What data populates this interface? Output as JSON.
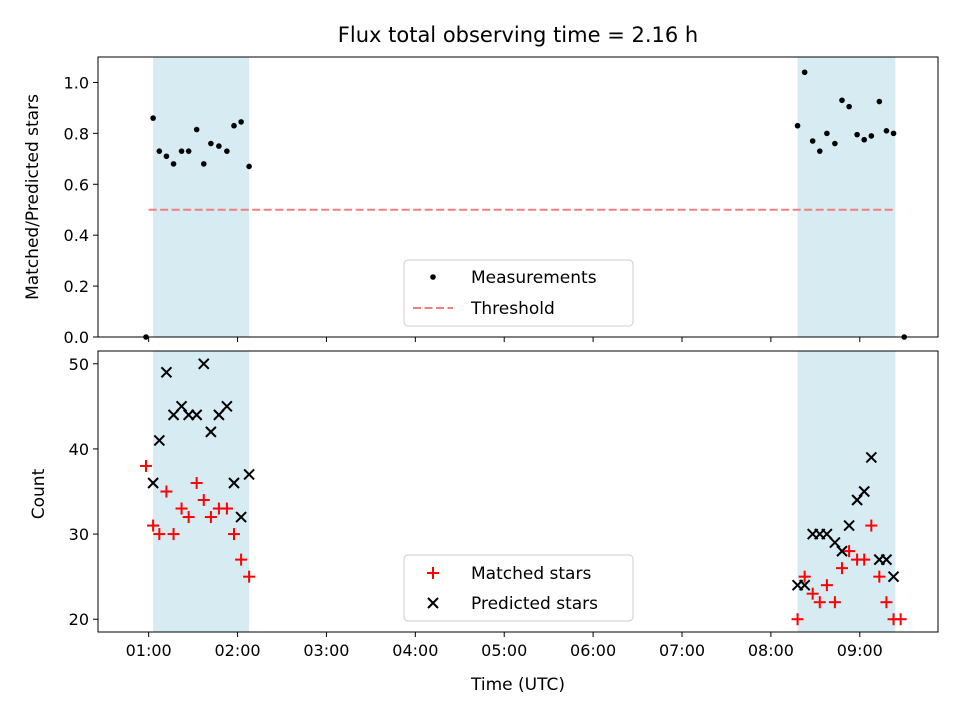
{
  "chart_data": [
    {
      "type": "scatter",
      "title": "Flux total observing time = 2.16 h",
      "xlabel": "",
      "ylabel": "Matched/Predicted stars",
      "ylim": [
        0,
        1.1
      ],
      "yticks": [
        0.0,
        0.2,
        0.4,
        0.6,
        0.8,
        1.0
      ],
      "ytick_labels": [
        "0.0",
        "0.2",
        "0.4",
        "0.6",
        "0.8",
        "1.0"
      ],
      "grid": false,
      "legend_position": "bottom-center",
      "shaded_intervals_hours": [
        [
          1.05,
          2.13
        ],
        [
          8.3,
          9.4
        ]
      ],
      "shade_color": "#add8e6",
      "series": [
        {
          "name": "Measurements",
          "marker": "dot",
          "color": "#000000",
          "x": [
            0.97,
            1.05,
            1.12,
            1.2,
            1.28,
            1.37,
            1.45,
            1.54,
            1.62,
            1.7,
            1.79,
            1.88,
            1.96,
            2.04,
            2.13,
            8.3,
            8.38,
            8.47,
            8.55,
            8.63,
            8.72,
            8.8,
            8.88,
            8.97,
            9.05,
            9.13,
            9.22,
            9.3,
            9.38,
            9.5
          ],
          "y": [
            0.0,
            0.86,
            0.73,
            0.71,
            0.68,
            0.73,
            0.73,
            0.815,
            0.68,
            0.76,
            0.75,
            0.73,
            0.83,
            0.845,
            0.67,
            0.83,
            1.04,
            0.77,
            0.73,
            0.8,
            0.76,
            0.93,
            0.905,
            0.795,
            0.775,
            0.79,
            0.925,
            0.81,
            0.8,
            0.0
          ]
        },
        {
          "name": "Threshold",
          "style": "dashed",
          "color": "#f08080",
          "x": [
            1.0,
            9.4
          ],
          "y": [
            0.5,
            0.5
          ]
        }
      ]
    },
    {
      "type": "scatter",
      "xlabel": "Time (UTC)",
      "ylabel": "Count",
      "ylim": [
        18.5,
        51.5
      ],
      "yticks": [
        20,
        30,
        40,
        50
      ],
      "ytick_labels": [
        "20",
        "30",
        "40",
        "50"
      ],
      "xlim_hours": [
        0.43,
        9.88
      ],
      "xticks_hours": [
        1,
        2,
        3,
        4,
        5,
        6,
        7,
        8,
        9
      ],
      "xtick_labels": [
        "01:00",
        "02:00",
        "03:00",
        "04:00",
        "05:00",
        "06:00",
        "07:00",
        "08:00",
        "09:00"
      ],
      "grid": false,
      "legend_position": "bottom-center",
      "series": [
        {
          "name": "Matched stars",
          "marker": "plus",
          "color": "#ff0000",
          "x": [
            0.97,
            1.05,
            1.12,
            1.2,
            1.28,
            1.37,
            1.45,
            1.54,
            1.62,
            1.7,
            1.79,
            1.88,
            1.96,
            2.04,
            2.13,
            8.3,
            8.38,
            8.47,
            8.55,
            8.63,
            8.72,
            8.8,
            8.88,
            8.97,
            9.05,
            9.13,
            9.22,
            9.3,
            9.38,
            9.46
          ],
          "y": [
            38,
            31,
            30,
            35,
            30,
            33,
            32,
            36,
            34,
            32,
            33,
            33,
            30,
            27,
            25,
            20,
            25,
            23,
            22,
            24,
            22,
            26,
            28,
            27,
            27,
            31,
            25,
            22,
            20,
            20
          ]
        },
        {
          "name": "Predicted stars",
          "marker": "x",
          "color": "#000000",
          "x": [
            1.05,
            1.12,
            1.2,
            1.28,
            1.37,
            1.45,
            1.54,
            1.62,
            1.7,
            1.79,
            1.88,
            1.96,
            2.04,
            2.13,
            8.3,
            8.38,
            8.47,
            8.55,
            8.63,
            8.72,
            8.8,
            8.88,
            8.97,
            9.05,
            9.13,
            9.22,
            9.3,
            9.38
          ],
          "y": [
            36,
            41,
            49,
            44,
            45,
            44,
            44,
            50,
            42,
            44,
            45,
            36,
            32,
            37,
            24,
            24,
            30,
            30,
            30,
            29,
            28,
            31,
            34,
            35,
            39,
            27,
            27,
            25
          ]
        }
      ]
    }
  ]
}
